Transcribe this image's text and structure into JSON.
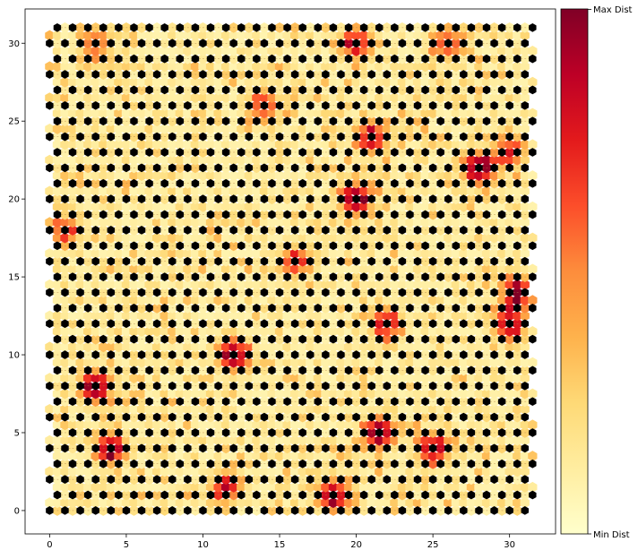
{
  "chart_data": {
    "type": "heatmap",
    "subtype": "self-organizing-map-u-matrix",
    "title": "",
    "xlabel": "",
    "ylabel": "",
    "grid": false,
    "som_grid_size": [
      32,
      32
    ],
    "xlim": [
      -1.6,
      33.0
    ],
    "ylim": [
      -1.5,
      32.2
    ],
    "xticks": [
      0,
      5,
      10,
      15,
      20,
      25,
      30
    ],
    "yticks": [
      0,
      5,
      10,
      15,
      20,
      25,
      30
    ],
    "node_color": "#000000",
    "colorbar": {
      "colors": [
        "#ffffcc",
        "#ffeda0",
        "#fed976",
        "#feb24c",
        "#fd8d3c",
        "#fc4e2a",
        "#e31a1c",
        "#bd0026",
        "#800026"
      ],
      "min_label": "Min Dist",
      "max_label": "Max Dist",
      "placement": "right"
    },
    "high_distance_regions": [
      {
        "x": 28,
        "y": 22,
        "intensity": 1.0
      },
      {
        "x": 20,
        "y": 20,
        "intensity": 0.95
      },
      {
        "x": 12,
        "y": 10,
        "intensity": 0.95
      },
      {
        "x": 3,
        "y": 8,
        "intensity": 0.9
      },
      {
        "x": 4,
        "y": 4,
        "intensity": 0.9
      },
      {
        "x": 21.5,
        "y": 5,
        "intensity": 0.95
      },
      {
        "x": 30.5,
        "y": 14,
        "intensity": 0.9
      },
      {
        "x": 30,
        "y": 12,
        "intensity": 0.85
      },
      {
        "x": 18.5,
        "y": 1,
        "intensity": 0.9
      },
      {
        "x": 25,
        "y": 4,
        "intensity": 0.8
      },
      {
        "x": 21,
        "y": 24,
        "intensity": 0.75
      },
      {
        "x": 22,
        "y": 12,
        "intensity": 0.7
      },
      {
        "x": 20,
        "y": 30,
        "intensity": 0.7
      },
      {
        "x": 14,
        "y": 26,
        "intensity": 0.6
      },
      {
        "x": 26,
        "y": 30,
        "intensity": 0.55
      },
      {
        "x": 1,
        "y": 18,
        "intensity": 0.55
      },
      {
        "x": 16,
        "y": 16,
        "intensity": 0.55
      },
      {
        "x": 3,
        "y": 30,
        "intensity": 0.55
      },
      {
        "x": 11.5,
        "y": 1.5,
        "intensity": 0.7
      },
      {
        "x": 30,
        "y": 23,
        "intensity": 0.65
      }
    ]
  }
}
